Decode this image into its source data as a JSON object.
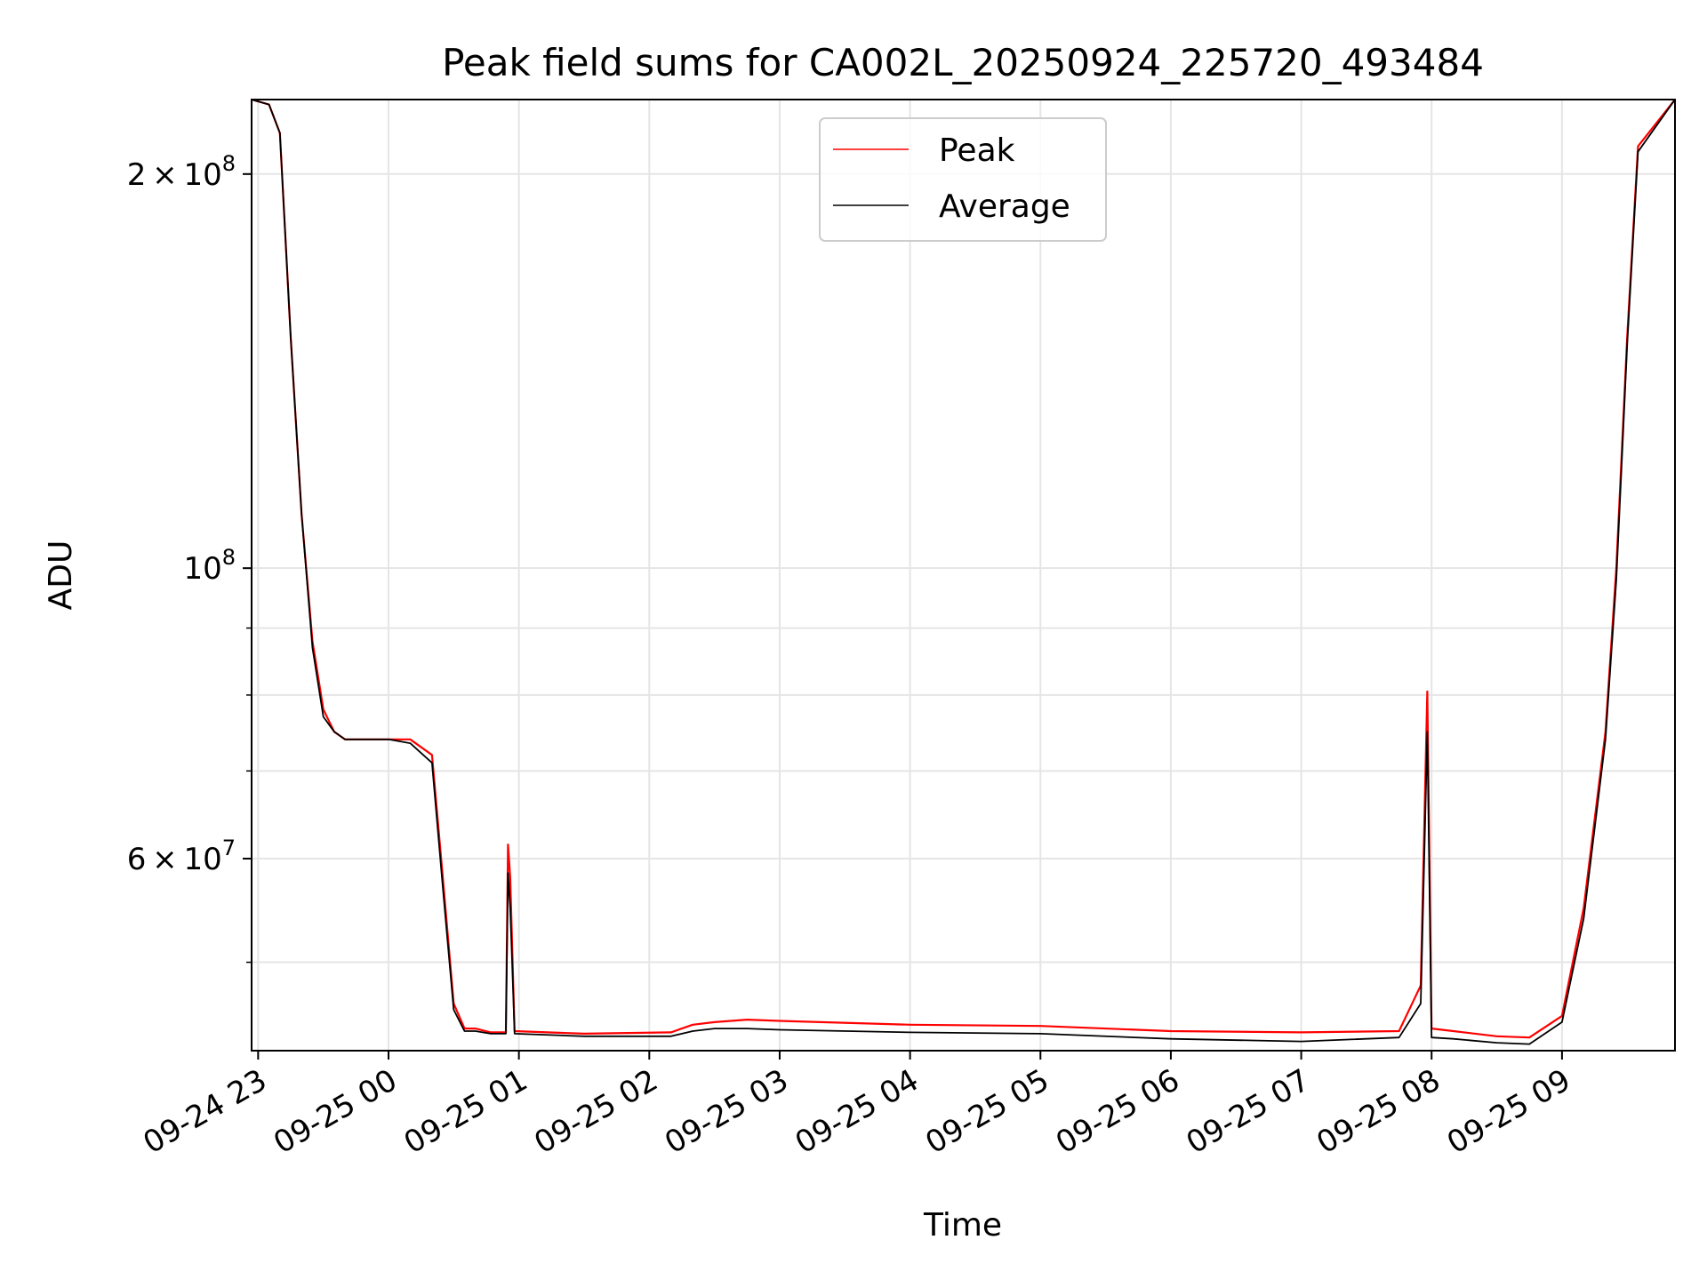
{
  "chart_data": {
    "type": "line",
    "title": "Peak field sums for CA002L_20250924_225720_493484",
    "xlabel": "Time",
    "ylabel": "ADU",
    "yscale": "log",
    "ylim": [
      42800000,
      228000000
    ],
    "xlim": [
      "2025-09-24T22:57",
      "2025-09-25T09:52"
    ],
    "grid": true,
    "legend": "upper center",
    "x_ticks": [
      "09-24 23",
      "09-25 00",
      "09-25 01",
      "09-25 02",
      "09-25 03",
      "09-25 04",
      "09-25 05",
      "09-25 06",
      "09-25 07",
      "09-25 08",
      "09-25 09"
    ],
    "y_ticks": [
      {
        "value": 60000000,
        "base": "6",
        "mult": "×",
        "exp_base": "10",
        "exp": "7"
      },
      {
        "value": 100000000,
        "base": "",
        "mult": "",
        "exp_base": "10",
        "exp": "8"
      },
      {
        "value": 200000000,
        "base": "2",
        "mult": "×",
        "exp_base": "10",
        "exp": "8"
      }
    ],
    "series": [
      {
        "name": "Peak",
        "color": "#ff0000",
        "x": [
          "2025-09-24T22:57",
          "2025-09-24T23:05",
          "2025-09-24T23:10",
          "2025-09-24T23:15",
          "2025-09-24T23:20",
          "2025-09-24T23:25",
          "2025-09-24T23:30",
          "2025-09-24T23:35",
          "2025-09-24T23:40",
          "2025-09-24T23:45",
          "2025-09-24T23:50",
          "2025-09-25T00:00",
          "2025-09-25T00:10",
          "2025-09-25T00:20",
          "2025-09-25T00:25",
          "2025-09-25T00:30",
          "2025-09-25T00:35",
          "2025-09-25T00:40",
          "2025-09-25T00:47",
          "2025-09-25T00:54",
          "2025-09-25T00:55",
          "2025-09-25T00:56",
          "2025-09-25T00:58",
          "2025-09-25T01:30",
          "2025-09-25T02:10",
          "2025-09-25T02:20",
          "2025-09-25T02:30",
          "2025-09-25T02:45",
          "2025-09-25T03:00",
          "2025-09-25T04:00",
          "2025-09-25T05:00",
          "2025-09-25T06:00",
          "2025-09-25T07:00",
          "2025-09-25T07:45",
          "2025-09-25T07:55",
          "2025-09-25T07:58",
          "2025-09-25T08:00",
          "2025-09-25T08:10",
          "2025-09-25T08:30",
          "2025-09-25T08:45",
          "2025-09-25T09:00",
          "2025-09-25T09:10",
          "2025-09-25T09:20",
          "2025-09-25T09:25",
          "2025-09-25T09:30",
          "2025-09-25T09:35",
          "2025-09-25T09:52"
        ],
        "y": [
          228000000,
          226000000,
          215000000,
          150000000,
          110000000,
          88000000,
          78000000,
          75000000,
          74000000,
          74000000,
          74000000,
          74000000,
          74000000,
          72000000,
          58000000,
          46500000,
          44500000,
          44500000,
          44200000,
          44200000,
          61500000,
          58000000,
          44300000,
          44100000,
          44200000,
          44800000,
          45000000,
          45200000,
          45100000,
          44800000,
          44700000,
          44300000,
          44200000,
          44300000,
          48000000,
          80500000,
          44500000,
          44300000,
          43900000,
          43800000,
          45500000,
          55000000,
          75000000,
          100000000,
          150000000,
          210000000,
          228000000
        ]
      },
      {
        "name": "Average",
        "color": "#000000",
        "x": [
          "2025-09-24T22:57",
          "2025-09-24T23:05",
          "2025-09-24T23:10",
          "2025-09-24T23:15",
          "2025-09-24T23:20",
          "2025-09-24T23:25",
          "2025-09-24T23:30",
          "2025-09-24T23:35",
          "2025-09-24T23:40",
          "2025-09-24T23:45",
          "2025-09-24T23:50",
          "2025-09-25T00:00",
          "2025-09-25T00:10",
          "2025-09-25T00:20",
          "2025-09-25T00:25",
          "2025-09-25T00:30",
          "2025-09-25T00:35",
          "2025-09-25T00:40",
          "2025-09-25T00:47",
          "2025-09-25T00:54",
          "2025-09-25T00:55",
          "2025-09-25T00:56",
          "2025-09-25T00:58",
          "2025-09-25T01:30",
          "2025-09-25T02:10",
          "2025-09-25T02:20",
          "2025-09-25T02:30",
          "2025-09-25T02:45",
          "2025-09-25T03:00",
          "2025-09-25T04:00",
          "2025-09-25T05:00",
          "2025-09-25T06:00",
          "2025-09-25T07:00",
          "2025-09-25T07:45",
          "2025-09-25T07:55",
          "2025-09-25T07:58",
          "2025-09-25T08:00",
          "2025-09-25T08:10",
          "2025-09-25T08:30",
          "2025-09-25T08:45",
          "2025-09-25T09:00",
          "2025-09-25T09:10",
          "2025-09-25T09:20",
          "2025-09-25T09:25",
          "2025-09-25T09:30",
          "2025-09-25T09:35",
          "2025-09-25T09:52"
        ],
        "y": [
          228000000,
          226000000,
          215000000,
          150000000,
          110000000,
          87000000,
          77000000,
          75000000,
          74000000,
          74000000,
          74000000,
          74000000,
          73500000,
          71000000,
          57000000,
          46000000,
          44300000,
          44300000,
          44100000,
          44100000,
          58500000,
          55000000,
          44100000,
          43900000,
          43900000,
          44300000,
          44500000,
          44500000,
          44400000,
          44200000,
          44100000,
          43700000,
          43500000,
          43800000,
          46500000,
          75000000,
          43800000,
          43700000,
          43400000,
          43300000,
          45000000,
          54000000,
          74000000,
          98000000,
          148000000,
          208000000,
          228000000
        ]
      }
    ]
  }
}
